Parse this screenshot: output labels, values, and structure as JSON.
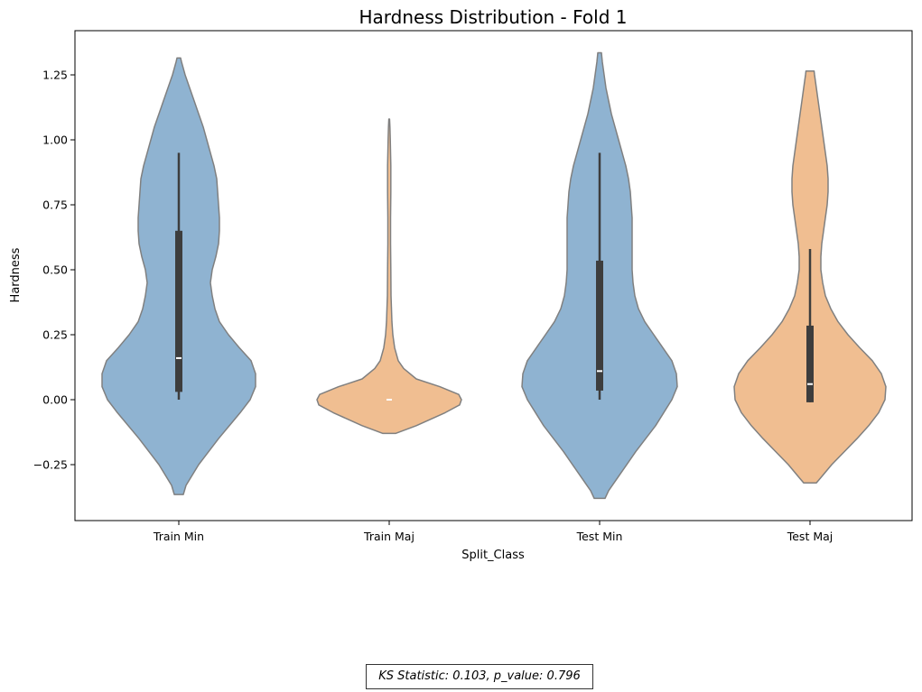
{
  "chart_data": {
    "type": "violin",
    "title": "Hardness Distribution - Fold 1",
    "xlabel": "Split_Class",
    "ylabel": "Hardness",
    "ylim": [
      -0.42,
      1.4
    ],
    "yticks": [
      -0.25,
      0.0,
      0.25,
      0.5,
      0.75,
      1.0,
      1.25
    ],
    "ytick_labels": [
      "−0.25",
      "0.00",
      "0.25",
      "0.50",
      "0.75",
      "1.00",
      "1.25"
    ],
    "grid": false,
    "colors": {
      "min": "#8fb3d1",
      "maj": "#f0be91",
      "outline": "#808080",
      "box": "#3d3d3d"
    },
    "categories": [
      "Train Min",
      "Train Maj",
      "Test Min",
      "Test Maj"
    ],
    "violins": [
      {
        "category": "Train Min",
        "color_key": "min",
        "median": 0.16,
        "q1": 0.03,
        "q3": 0.65,
        "whisker_low": 0.0,
        "whisker_high": 0.95,
        "profile": [
          [
            -0.365,
            0.05
          ],
          [
            -0.33,
            0.08
          ],
          [
            -0.25,
            0.22
          ],
          [
            -0.15,
            0.44
          ],
          [
            -0.05,
            0.68
          ],
          [
            0.0,
            0.79
          ],
          [
            0.05,
            0.85
          ],
          [
            0.1,
            0.85
          ],
          [
            0.15,
            0.8
          ],
          [
            0.2,
            0.67
          ],
          [
            0.25,
            0.55
          ],
          [
            0.3,
            0.45
          ],
          [
            0.35,
            0.4
          ],
          [
            0.4,
            0.37
          ],
          [
            0.45,
            0.35
          ],
          [
            0.5,
            0.37
          ],
          [
            0.55,
            0.41
          ],
          [
            0.6,
            0.44
          ],
          [
            0.65,
            0.45
          ],
          [
            0.7,
            0.45
          ],
          [
            0.75,
            0.44
          ],
          [
            0.8,
            0.43
          ],
          [
            0.85,
            0.42
          ],
          [
            0.9,
            0.39
          ],
          [
            0.95,
            0.35
          ],
          [
            1.0,
            0.31
          ],
          [
            1.05,
            0.27
          ],
          [
            1.1,
            0.22
          ],
          [
            1.15,
            0.17
          ],
          [
            1.2,
            0.12
          ],
          [
            1.25,
            0.07
          ],
          [
            1.3,
            0.03
          ],
          [
            1.315,
            0.02
          ]
        ]
      },
      {
        "category": "Train Maj",
        "color_key": "maj",
        "median": 0.0,
        "q1": 0.0,
        "q3": 0.0,
        "whisker_low": 0.0,
        "whisker_high": 0.0,
        "profile": [
          [
            -0.13,
            0.07
          ],
          [
            -0.1,
            0.3
          ],
          [
            -0.05,
            0.62
          ],
          [
            -0.02,
            0.78
          ],
          [
            0.0,
            0.8
          ],
          [
            0.02,
            0.77
          ],
          [
            0.05,
            0.56
          ],
          [
            0.08,
            0.3
          ],
          [
            0.12,
            0.16
          ],
          [
            0.15,
            0.1
          ],
          [
            0.2,
            0.06
          ],
          [
            0.25,
            0.04
          ],
          [
            0.3,
            0.03
          ],
          [
            0.4,
            0.02
          ],
          [
            0.5,
            0.018
          ],
          [
            0.6,
            0.015
          ],
          [
            0.7,
            0.015
          ],
          [
            0.8,
            0.018
          ],
          [
            0.9,
            0.018
          ],
          [
            1.0,
            0.012
          ],
          [
            1.05,
            0.008
          ],
          [
            1.08,
            0.004
          ]
        ]
      },
      {
        "category": "Test Min",
        "color_key": "min",
        "median": 0.11,
        "q1": 0.035,
        "q3": 0.535,
        "whisker_low": 0.0,
        "whisker_high": 0.95,
        "profile": [
          [
            -0.38,
            0.06
          ],
          [
            -0.35,
            0.1
          ],
          [
            -0.3,
            0.2
          ],
          [
            -0.2,
            0.4
          ],
          [
            -0.1,
            0.62
          ],
          [
            0.0,
            0.8
          ],
          [
            0.05,
            0.86
          ],
          [
            0.1,
            0.85
          ],
          [
            0.15,
            0.8
          ],
          [
            0.2,
            0.7
          ],
          [
            0.25,
            0.6
          ],
          [
            0.3,
            0.5
          ],
          [
            0.35,
            0.43
          ],
          [
            0.4,
            0.39
          ],
          [
            0.45,
            0.37
          ],
          [
            0.5,
            0.36
          ],
          [
            0.55,
            0.36
          ],
          [
            0.6,
            0.36
          ],
          [
            0.65,
            0.36
          ],
          [
            0.7,
            0.36
          ],
          [
            0.75,
            0.35
          ],
          [
            0.8,
            0.34
          ],
          [
            0.85,
            0.32
          ],
          [
            0.9,
            0.29
          ],
          [
            0.95,
            0.25
          ],
          [
            1.0,
            0.21
          ],
          [
            1.05,
            0.17
          ],
          [
            1.1,
            0.13
          ],
          [
            1.15,
            0.1
          ],
          [
            1.2,
            0.07
          ],
          [
            1.25,
            0.05
          ],
          [
            1.3,
            0.03
          ],
          [
            1.335,
            0.02
          ]
        ]
      },
      {
        "category": "Test Maj",
        "color_key": "maj",
        "median": 0.06,
        "q1": -0.01,
        "q3": 0.285,
        "whisker_low": -0.01,
        "whisker_high": 0.58,
        "profile": [
          [
            -0.32,
            0.07
          ],
          [
            -0.3,
            0.12
          ],
          [
            -0.25,
            0.24
          ],
          [
            -0.2,
            0.38
          ],
          [
            -0.15,
            0.52
          ],
          [
            -0.1,
            0.65
          ],
          [
            -0.05,
            0.76
          ],
          [
            0.0,
            0.83
          ],
          [
            0.05,
            0.84
          ],
          [
            0.1,
            0.79
          ],
          [
            0.15,
            0.69
          ],
          [
            0.2,
            0.55
          ],
          [
            0.25,
            0.42
          ],
          [
            0.3,
            0.31
          ],
          [
            0.35,
            0.23
          ],
          [
            0.4,
            0.17
          ],
          [
            0.45,
            0.14
          ],
          [
            0.5,
            0.12
          ],
          [
            0.55,
            0.12
          ],
          [
            0.6,
            0.13
          ],
          [
            0.65,
            0.15
          ],
          [
            0.7,
            0.17
          ],
          [
            0.75,
            0.19
          ],
          [
            0.8,
            0.2
          ],
          [
            0.85,
            0.2
          ],
          [
            0.9,
            0.19
          ],
          [
            0.95,
            0.17
          ],
          [
            1.0,
            0.15
          ],
          [
            1.05,
            0.13
          ],
          [
            1.1,
            0.11
          ],
          [
            1.15,
            0.09
          ],
          [
            1.2,
            0.07
          ],
          [
            1.25,
            0.05
          ],
          [
            1.265,
            0.045
          ]
        ]
      }
    ]
  },
  "footnote": "KS Statistic: 0.103, p_value: 0.796"
}
